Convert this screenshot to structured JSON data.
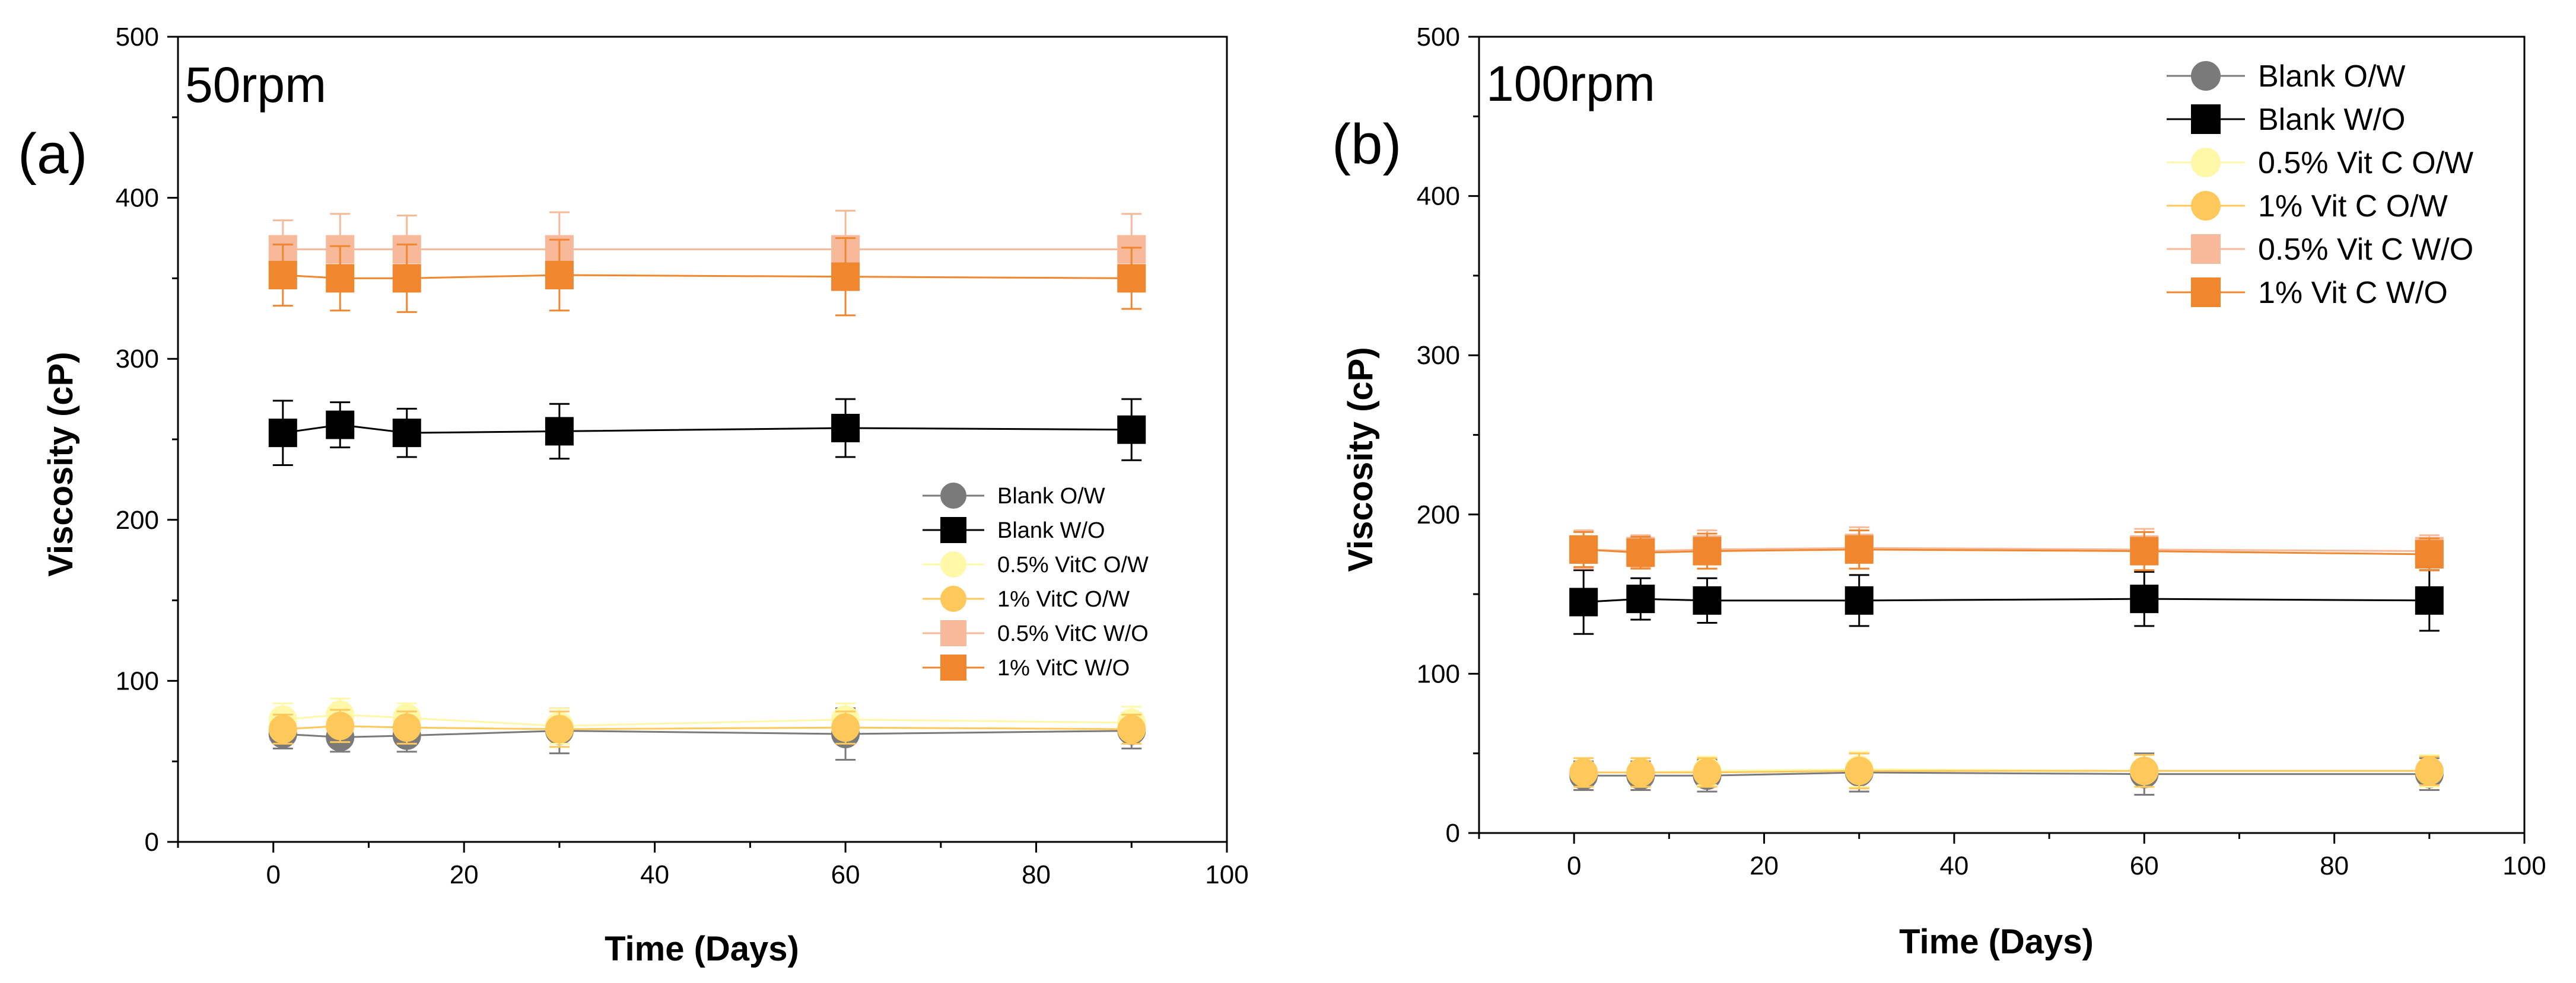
{
  "chart_data": [
    {
      "type": "line",
      "panel_letter": "(a)",
      "title": "50rpm",
      "xlabel": "Time (Days)",
      "ylabel": "Viscosity (cP)",
      "xlim": [
        -10,
        100
      ],
      "ylim": [
        0,
        500
      ],
      "xticks": [
        0,
        20,
        40,
        60,
        80,
        100
      ],
      "yticks": [
        0,
        100,
        200,
        300,
        400,
        500
      ],
      "grid": false,
      "legend_position": "center-right",
      "x": [
        1,
        7,
        14,
        30,
        60,
        90
      ],
      "series": [
        {
          "name": "Blank O/W",
          "marker": "circle",
          "color": "#7a7a7a",
          "values": [
            67,
            65,
            66,
            69,
            67,
            69
          ],
          "errors": [
            9,
            9,
            10,
            14,
            16,
            11
          ]
        },
        {
          "name": "Blank W/O",
          "marker": "square",
          "color": "#000000",
          "values": [
            254,
            259,
            254,
            255,
            257,
            256
          ],
          "errors": [
            20,
            14,
            15,
            17,
            18,
            19
          ]
        },
        {
          "name": "0.5% VitC O/W",
          "marker": "circle",
          "color": "#fff8a8",
          "values": [
            76,
            79,
            77,
            72,
            76,
            74
          ],
          "errors": [
            10,
            10,
            9,
            11,
            10,
            10
          ]
        },
        {
          "name": "1% VitC O/W",
          "marker": "circle",
          "color": "#ffc85a",
          "values": [
            70,
            72,
            71,
            70,
            71,
            70
          ],
          "errors": [
            9,
            10,
            10,
            11,
            10,
            9
          ]
        },
        {
          "name": "0.5% VitC W/O",
          "marker": "square",
          "color": "#f8b89a",
          "values": [
            368,
            368,
            368,
            368,
            368,
            368
          ],
          "errors": [
            18,
            22,
            21,
            23,
            24,
            22
          ]
        },
        {
          "name": "1% VitC W/O",
          "marker": "square",
          "color": "#f0862e",
          "values": [
            352,
            350,
            350,
            352,
            351,
            350
          ],
          "errors": [
            19,
            20,
            21,
            22,
            24,
            19
          ]
        }
      ]
    },
    {
      "type": "line",
      "panel_letter": "(b)",
      "title": "100rpm",
      "xlabel": "Time (Days)",
      "ylabel": "Viscosity (cP)",
      "xlim": [
        -10,
        100
      ],
      "ylim": [
        0,
        500
      ],
      "xticks": [
        0,
        20,
        40,
        60,
        80,
        100
      ],
      "yticks": [
        0,
        100,
        200,
        300,
        400,
        500
      ],
      "grid": false,
      "legend_position": "top-right",
      "x": [
        1,
        7,
        14,
        30,
        60,
        90
      ],
      "series": [
        {
          "name": "Blank O/W",
          "marker": "circle",
          "color": "#7a7a7a",
          "values": [
            36,
            36,
            36,
            38,
            37,
            37
          ],
          "errors": [
            9,
            9,
            10,
            12,
            13,
            10
          ]
        },
        {
          "name": "Blank W/O",
          "marker": "square",
          "color": "#000000",
          "values": [
            145,
            147,
            146,
            146,
            147,
            146
          ],
          "errors": [
            20,
            13,
            14,
            16,
            17,
            19
          ]
        },
        {
          "name": "0.5% Vit C O/W",
          "marker": "circle",
          "color": "#fff8a8",
          "values": [
            38,
            38,
            39,
            40,
            39,
            39
          ],
          "errors": [
            9,
            9,
            9,
            11,
            10,
            10
          ]
        },
        {
          "name": "1% Vit C O/W",
          "marker": "circle",
          "color": "#ffc85a",
          "values": [
            38,
            38,
            38,
            39,
            39,
            39
          ],
          "errors": [
            9,
            9,
            9,
            11,
            10,
            9
          ]
        },
        {
          "name": "0.5% Vit C W/O",
          "marker": "square",
          "color": "#f8b89a",
          "values": [
            178,
            177,
            178,
            179,
            178,
            177
          ],
          "errors": [
            12,
            10,
            12,
            13,
            13,
            10
          ]
        },
        {
          "name": "1% Vit C W/O",
          "marker": "square",
          "color": "#f0862e",
          "values": [
            178,
            176,
            177,
            178,
            177,
            175
          ],
          "errors": [
            11,
            10,
            11,
            12,
            12,
            10
          ]
        }
      ]
    }
  ]
}
